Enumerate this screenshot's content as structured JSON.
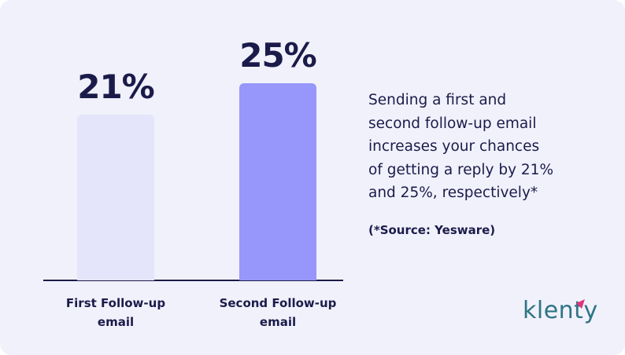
{
  "chart_data": {
    "type": "bar",
    "categories": [
      "First Follow-up email",
      "Second Follow-up email"
    ],
    "values": [
      21,
      25
    ],
    "value_labels": [
      "21%",
      "25%"
    ],
    "colors": [
      "#e4e4fb",
      "#9696fb"
    ],
    "annotation_lines": [
      "Sending a first and",
      "second follow-up email",
      "increases your chances",
      "of getting a reply by 21%",
      "and 25%, respectively*"
    ],
    "source": "(*Source: Yesware)"
  },
  "logo": "klenty"
}
